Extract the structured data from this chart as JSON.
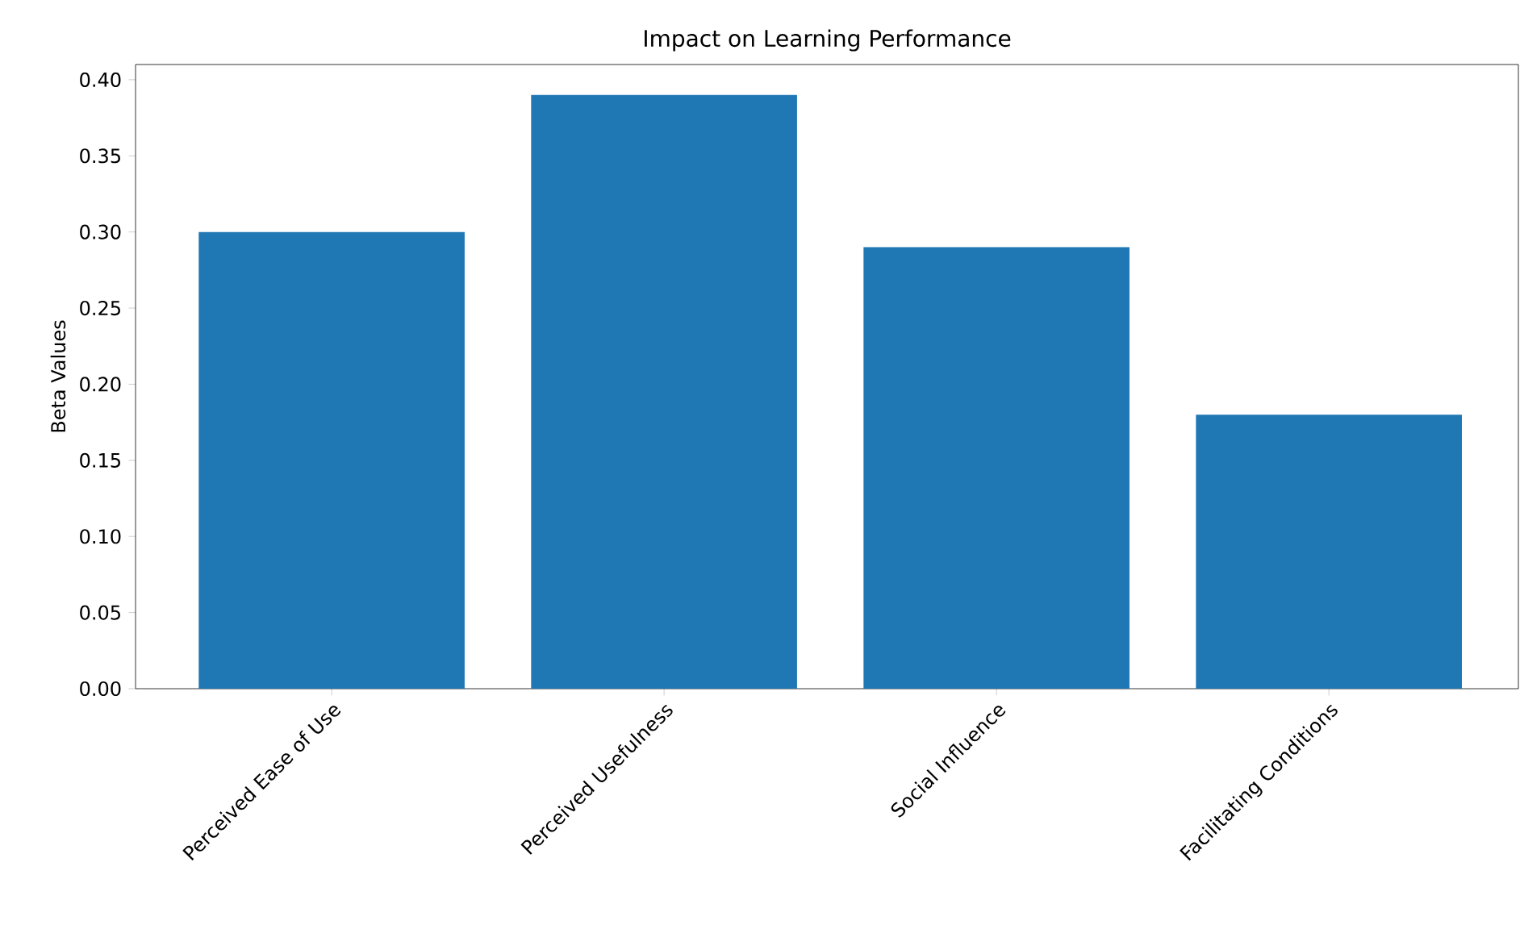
{
  "chart_data": {
    "type": "bar",
    "title": "Impact on Learning Performance",
    "ylabel": "Beta Values",
    "categories": [
      "Perceived Ease of Use",
      "Perceived Usefulness",
      "Social Influence",
      "Facilitating Conditions"
    ],
    "values": [
      0.3,
      0.39,
      0.29,
      0.18
    ],
    "color": "#1f77b4",
    "ylim": [
      0,
      0.41
    ],
    "yticks": [
      {
        "value": 0,
        "label": "0.00"
      },
      {
        "value": 0.05,
        "label": "0.05"
      },
      {
        "value": 0.1,
        "label": "0.10"
      },
      {
        "value": 0.15,
        "label": "0.15"
      },
      {
        "value": 0.2,
        "label": "0.20"
      },
      {
        "value": 0.25,
        "label": "0.25"
      },
      {
        "value": 0.3,
        "label": "0.30"
      },
      {
        "value": 0.35,
        "label": "0.35"
      },
      {
        "value": 0.4,
        "label": "0.40"
      }
    ]
  }
}
